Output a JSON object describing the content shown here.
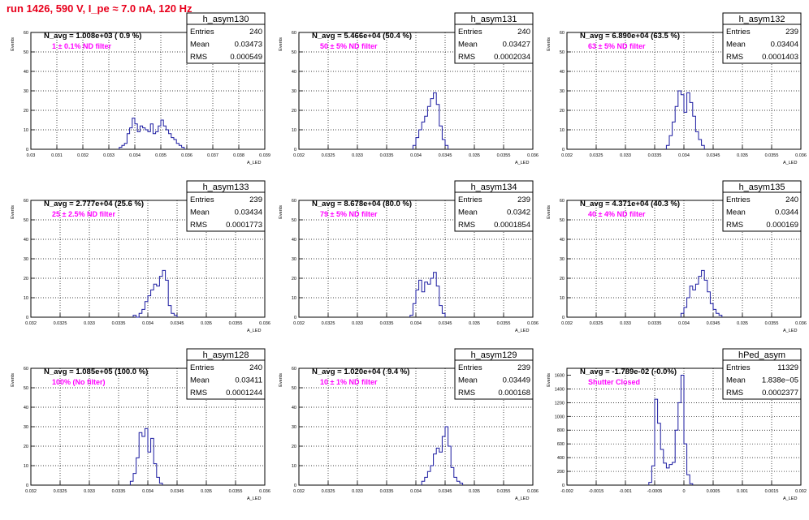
{
  "page_title": "run 1426,   590 V, I_pe ≈ 7.0 nA, 120 Hz",
  "colors": {
    "title": "#e8001c",
    "annotation": "#ff00ff",
    "histogram": "#1a1aa0",
    "grid": "#000000"
  },
  "chart_data": [
    {
      "type": "histogram",
      "name": "h_asym130",
      "entries": "240",
      "mean": "0.03473",
      "rms": "0.000549",
      "navg": "N_avg = 1.008e+03 ( 0.9 %)",
      "filter": "1 ± 0.1% ND filter",
      "ylabel": "Events",
      "xlabel": "A_LED",
      "xlim": [
        0.03,
        0.039
      ],
      "ylim": [
        0,
        60
      ],
      "xticks": [
        "0.03",
        "0.031",
        "0.032",
        "0.033",
        "0.034",
        "0.035",
        "0.036",
        "0.037",
        "0.038",
        "0.039"
      ],
      "yticks": [
        "0",
        "10",
        "20",
        "30",
        "40",
        "50",
        "60"
      ],
      "bin_start": 0.0334,
      "bin_width": 0.0001,
      "counts": [
        1,
        2,
        3,
        8,
        11,
        16,
        13,
        9,
        12,
        11,
        10,
        9,
        13,
        8,
        9,
        12,
        15,
        12,
        10,
        8,
        6,
        5,
        3,
        2,
        1
      ]
    },
    {
      "type": "histogram",
      "name": "h_asym131",
      "entries": "240",
      "mean": "0.03427",
      "rms": "0.0002034",
      "navg": "N_avg = 5.466e+04 (50.4 %)",
      "filter": "50 ± 5% ND filter",
      "ylabel": "Events",
      "xlabel": "A_LED",
      "xlim": [
        0.032,
        0.036
      ],
      "ylim": [
        0,
        60
      ],
      "xticks": [
        "0.032",
        "0.0325",
        "0.033",
        "0.0335",
        "0.034",
        "0.0345",
        "0.035",
        "0.0355",
        "0.036"
      ],
      "yticks": [
        "0",
        "10",
        "20",
        "30",
        "40",
        "50",
        "60"
      ],
      "bin_start": 0.03395,
      "bin_width": 5e-05,
      "counts": [
        2,
        6,
        10,
        14,
        17,
        22,
        26,
        29,
        23,
        12,
        5,
        2
      ]
    },
    {
      "type": "histogram",
      "name": "h_asym132",
      "entries": "239",
      "mean": "0.03404",
      "rms": "0.0001403",
      "navg": "N_avg = 6.890e+04 (63.5 %)",
      "filter": "63 ± 5% ND filter",
      "ylabel": "Events",
      "xlabel": "A_LED",
      "xlim": [
        0.032,
        0.036
      ],
      "ylim": [
        0,
        60
      ],
      "xticks": [
        "0.032",
        "0.0325",
        "0.033",
        "0.0335",
        "0.034",
        "0.0345",
        "0.035",
        "0.0355",
        "0.036"
      ],
      "yticks": [
        "0",
        "10",
        "20",
        "30",
        "40",
        "50",
        "60"
      ],
      "bin_start": 0.0337,
      "bin_width": 5e-05,
      "counts": [
        2,
        7,
        14,
        22,
        30,
        28,
        19,
        29,
        24,
        17,
        9,
        5,
        2
      ]
    },
    {
      "type": "histogram",
      "name": "h_asym133",
      "entries": "239",
      "mean": "0.03434",
      "rms": "0.0001773",
      "navg": "N_avg = 2.777e+04 (25.6 %)",
      "filter": "25 ± 2.5% ND filter",
      "ylabel": "Events",
      "xlabel": "A_LED",
      "xlim": [
        0.032,
        0.036
      ],
      "ylim": [
        0,
        60
      ],
      "xticks": [
        "0.032",
        "0.0325",
        "0.033",
        "0.0335",
        "0.034",
        "0.0345",
        "0.035",
        "0.0355",
        "0.036"
      ],
      "yticks": [
        "0",
        "10",
        "20",
        "30",
        "40",
        "50",
        "60"
      ],
      "bin_start": 0.03375,
      "bin_width": 5e-05,
      "counts": [
        1,
        0,
        2,
        4,
        8,
        11,
        14,
        17,
        16,
        21,
        24,
        19,
        6,
        2,
        1
      ]
    },
    {
      "type": "histogram",
      "name": "h_asym134",
      "entries": "239",
      "mean": "0.0342",
      "rms": "0.0001854",
      "navg": "N_avg = 8.678e+04 (80.0 %)",
      "filter": "79 ± 5% ND filter",
      "ylabel": "Events",
      "xlabel": "A_LED",
      "xlim": [
        0.032,
        0.036
      ],
      "ylim": [
        0,
        60
      ],
      "xticks": [
        "0.032",
        "0.0325",
        "0.033",
        "0.0335",
        "0.034",
        "0.0345",
        "0.035",
        "0.0355",
        "0.036"
      ],
      "yticks": [
        "0",
        "10",
        "20",
        "30",
        "40",
        "50",
        "60"
      ],
      "bin_start": 0.0339,
      "bin_width": 5e-05,
      "counts": [
        1,
        7,
        14,
        19,
        13,
        18,
        17,
        20,
        23,
        16,
        6,
        2
      ]
    },
    {
      "type": "histogram",
      "name": "h_asym135",
      "entries": "240",
      "mean": "0.0344",
      "rms": "0.000169",
      "navg": "N_avg = 4.371e+04 (40.3 %)",
      "filter": "40 ± 4% ND filter",
      "ylabel": "Events",
      "xlabel": "A_LED",
      "xlim": [
        0.032,
        0.036
      ],
      "ylim": [
        0,
        60
      ],
      "xticks": [
        "0.032",
        "0.0325",
        "0.033",
        "0.0335",
        "0.034",
        "0.0345",
        "0.035",
        "0.0355",
        "0.036"
      ],
      "yticks": [
        "0",
        "10",
        "20",
        "30",
        "40",
        "50",
        "60"
      ],
      "bin_start": 0.03395,
      "bin_width": 5e-05,
      "counts": [
        2,
        5,
        10,
        16,
        14,
        17,
        21,
        24,
        19,
        13,
        7,
        4,
        2,
        1
      ]
    },
    {
      "type": "histogram",
      "name": "h_asym128",
      "entries": "240",
      "mean": "0.03411",
      "rms": "0.0001244",
      "navg": "N_avg = 1.085e+05 (100.0 %)",
      "filter": "100% (No filter)",
      "ylabel": "Events",
      "xlabel": "A_LED",
      "xlim": [
        0.032,
        0.036
      ],
      "ylim": [
        0,
        60
      ],
      "xticks": [
        "0.032",
        "0.0325",
        "0.033",
        "0.0335",
        "0.034",
        "0.0345",
        "0.035",
        "0.0355",
        "0.036"
      ],
      "yticks": [
        "0",
        "10",
        "20",
        "30",
        "40",
        "50",
        "60"
      ],
      "bin_start": 0.0337,
      "bin_width": 5e-05,
      "counts": [
        2,
        6,
        14,
        27,
        25,
        29,
        17,
        24,
        11,
        4,
        1
      ]
    },
    {
      "type": "histogram",
      "name": "h_asym129",
      "entries": "239",
      "mean": "0.03449",
      "rms": "0.000168",
      "navg": "N_avg = 1.020e+04 ( 9.4 %)",
      "filter": "10 ± 1% ND filter",
      "ylabel": "Events",
      "xlabel": "A_LED",
      "xlim": [
        0.032,
        0.036
      ],
      "ylim": [
        0,
        60
      ],
      "xticks": [
        "0.032",
        "0.0325",
        "0.033",
        "0.0335",
        "0.034",
        "0.0345",
        "0.035",
        "0.0355",
        "0.036"
      ],
      "yticks": [
        "0",
        "10",
        "20",
        "30",
        "40",
        "50",
        "60"
      ],
      "bin_start": 0.0341,
      "bin_width": 5e-05,
      "counts": [
        2,
        4,
        7,
        10,
        16,
        19,
        17,
        25,
        30,
        20,
        9,
        4,
        2,
        1
      ]
    },
    {
      "type": "histogram",
      "name": "hPed_asym",
      "entries": "11329",
      "mean": "1.838e−05",
      "rms": "0.0002377",
      "navg": "N_avg = -1.789e-02 (-0.0%)",
      "filter": "Shutter Closed",
      "ylabel": "Events",
      "xlabel": "A_LED",
      "xlim": [
        -0.002,
        0.002
      ],
      "ylim": [
        0,
        1700
      ],
      "xticks": [
        "-0.002",
        "-0.0015",
        "-0.001",
        "-0.0005",
        "0",
        "0.0005",
        "0.001",
        "0.0015",
        "0.002"
      ],
      "yticks": [
        "0",
        "200",
        "400",
        "600",
        "800",
        "1000",
        "1200",
        "1400",
        "1600"
      ],
      "bin_start": -0.0006,
      "bin_width": 5e-05,
      "counts": [
        40,
        280,
        1250,
        900,
        520,
        320,
        250,
        300,
        330,
        800,
        1200,
        1600,
        600,
        150,
        20
      ]
    }
  ]
}
